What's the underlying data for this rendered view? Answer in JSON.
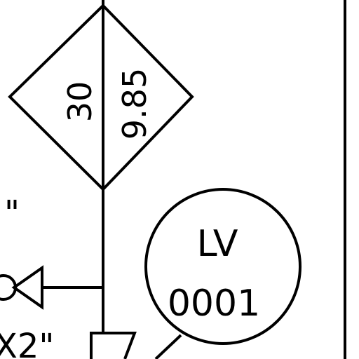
{
  "diagram": {
    "diamond": {
      "left_value": "30",
      "right_value": "9.85"
    },
    "instrument": {
      "tag_letters": "LV",
      "tag_number": "0001"
    },
    "partial_labels": {
      "upper_left": "\"",
      "lower_left": "X2\""
    }
  }
}
